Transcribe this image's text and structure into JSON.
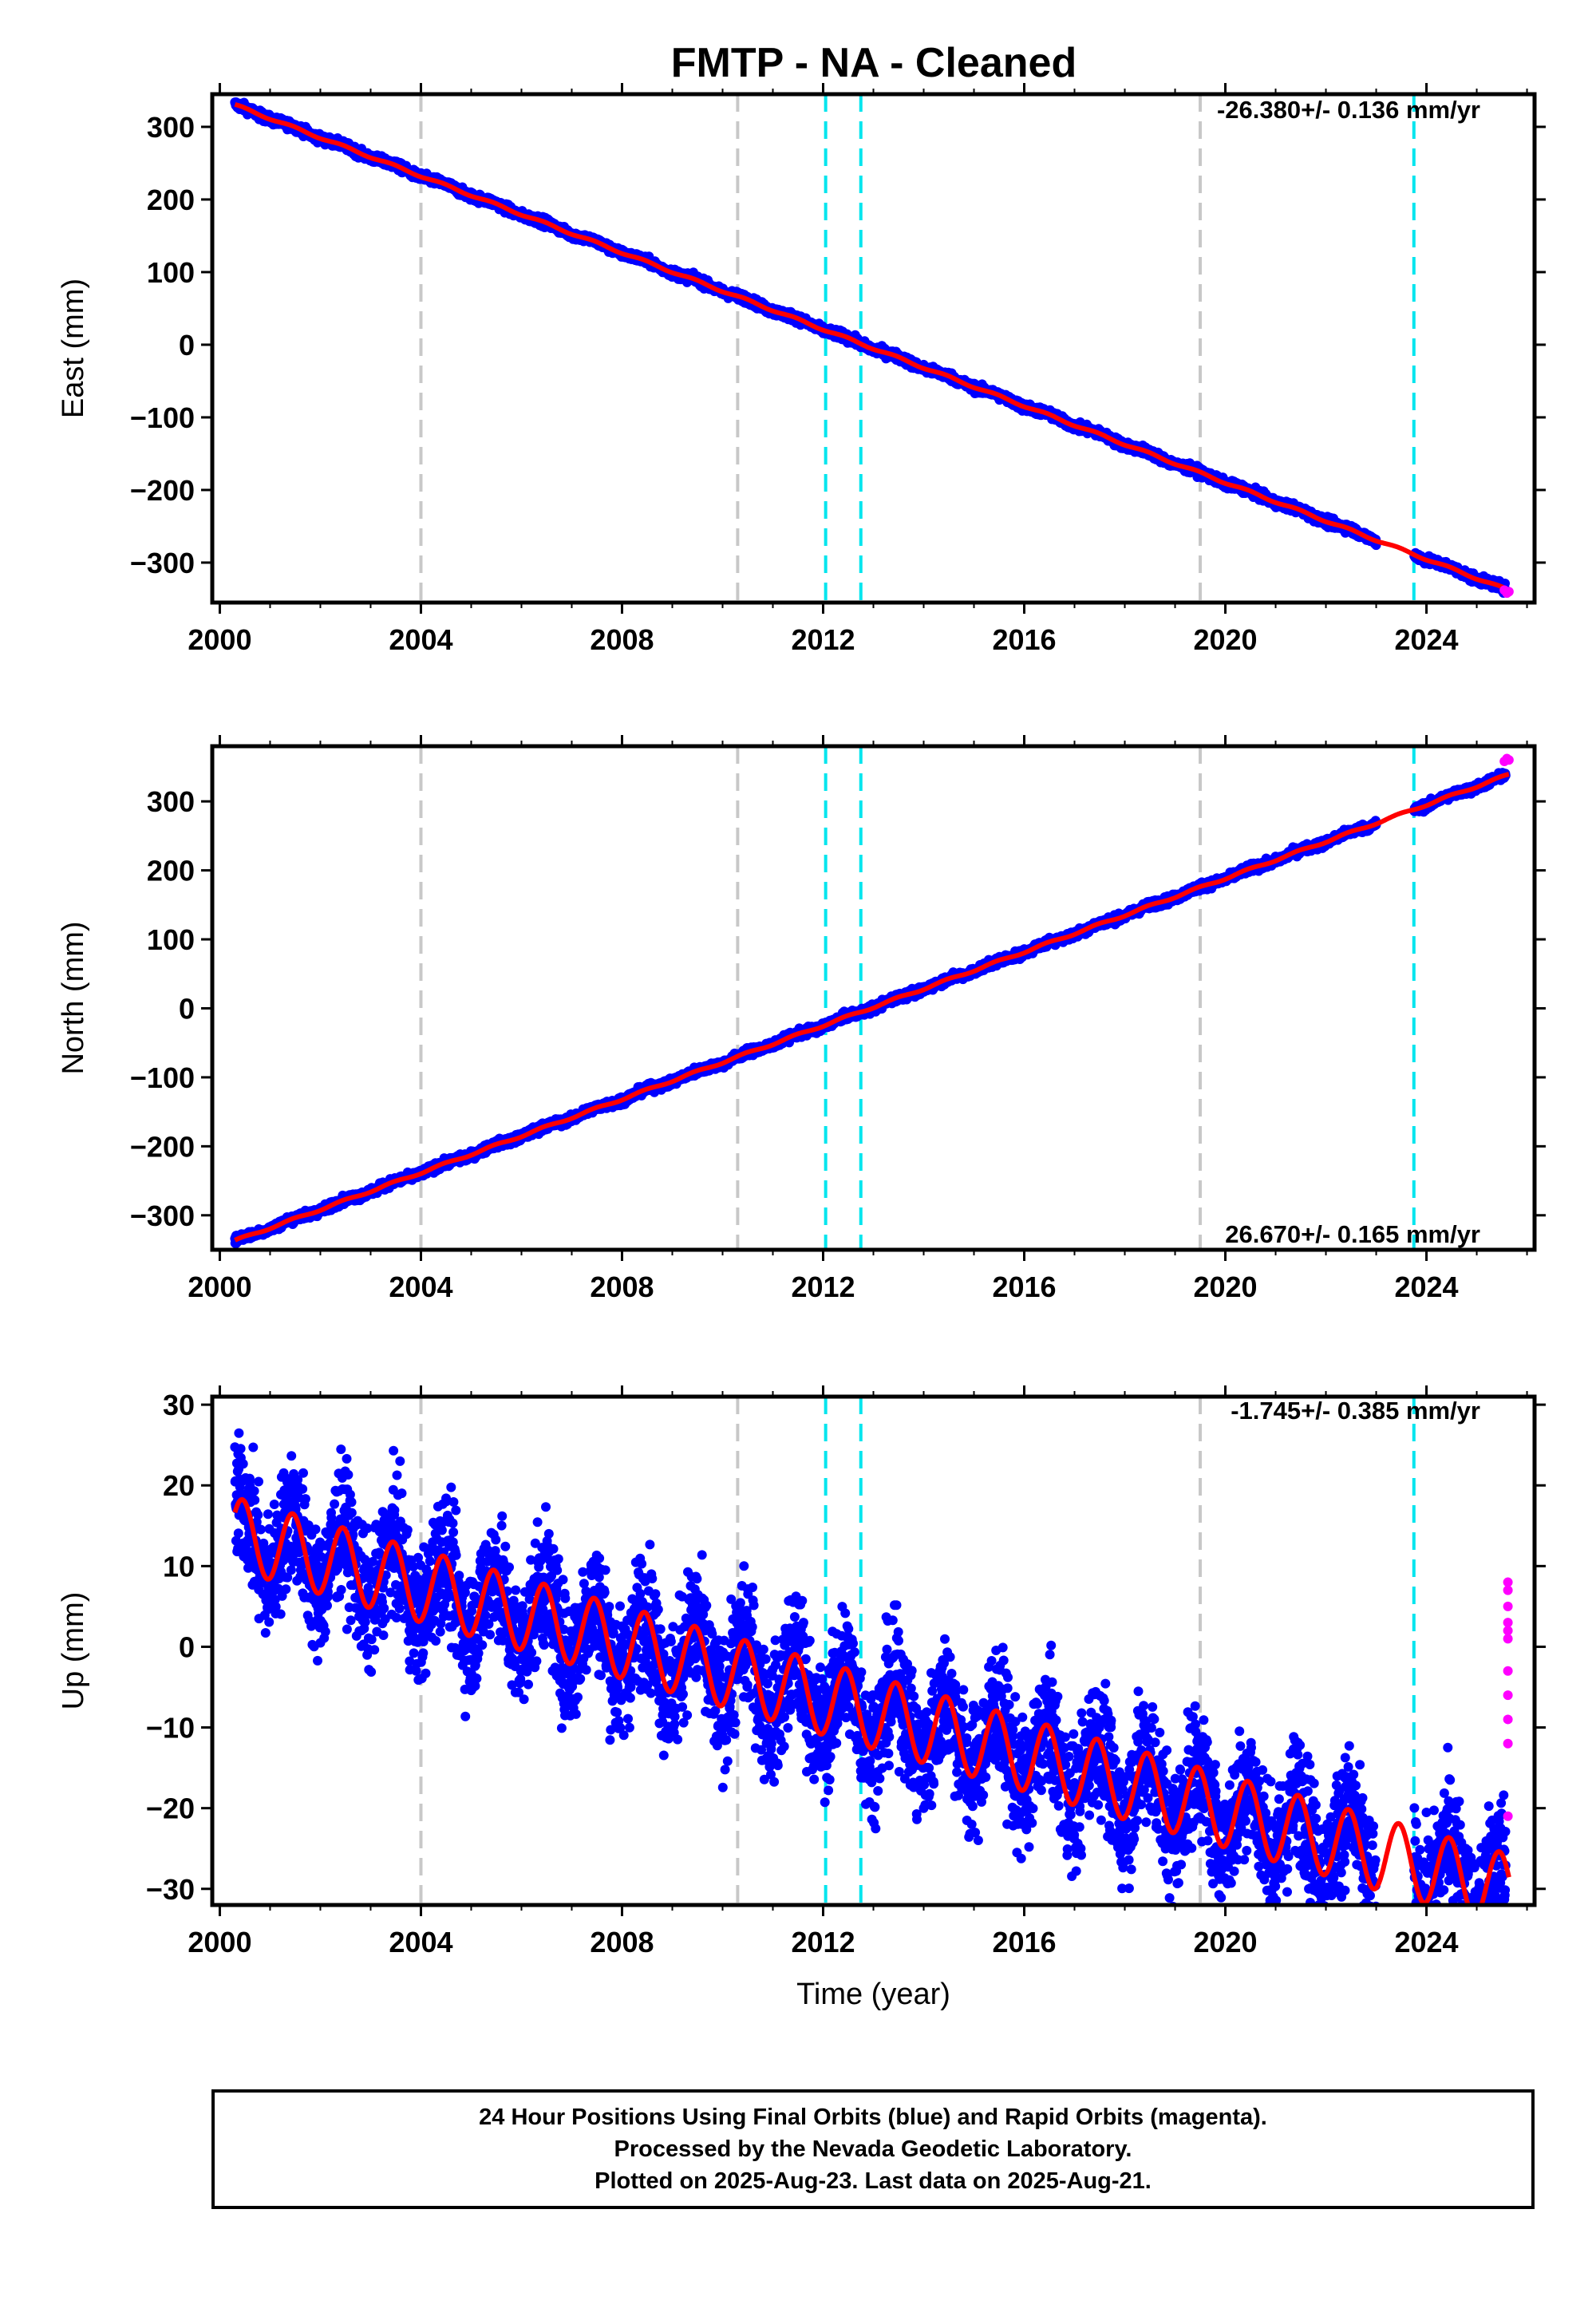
{
  "title": "FMTP  - NA - Cleaned",
  "caption": [
    "24 Hour Positions Using Final Orbits (blue) and Rapid Orbits (magenta).",
    "Processed by the Nevada Geodetic Laboratory.",
    "Plotted on 2025-Aug-23. Last data on 2025-Aug-21."
  ],
  "colors": {
    "final_orbits": "#0000ff",
    "rapid_orbits": "#ff00ff",
    "model_fit": "#ff0000",
    "equipment_change": "#c8c8c8",
    "earthquake_offset": "#00e5ee"
  },
  "chart_data": [
    {
      "type": "scatter",
      "panel": "east",
      "ylabel": "East (mm)",
      "xlabel": "",
      "rate_label": "-26.380+/- 0.136 mm/yr",
      "xlim": [
        1999.85,
        2026.15
      ],
      "ylim": [
        -355,
        345
      ],
      "xticks": [
        2000,
        2004,
        2008,
        2012,
        2016,
        2020,
        2024
      ],
      "yticks": [
        -300,
        -200,
        -100,
        0,
        100,
        200,
        300
      ],
      "model": {
        "start_year": 2000.3,
        "end_year": 2025.64,
        "value_at_start": 330,
        "rate_mm_yr": -26.38,
        "seasonal_amp": 1.5,
        "noise": 3
      },
      "gap": [
        2023.0,
        2023.75
      ],
      "rapid_points": [
        [
          2025.55,
          -338
        ],
        [
          2025.6,
          -342
        ],
        [
          2025.64,
          -340
        ]
      ],
      "gray_lines": [
        2004.0,
        2010.3,
        2019.5
      ],
      "cyan_lines": [
        2012.05,
        2012.75,
        2023.75
      ]
    },
    {
      "type": "scatter",
      "panel": "north",
      "ylabel": "North (mm)",
      "xlabel": "",
      "rate_label": "26.670+/- 0.165 mm/yr",
      "xlim": [
        1999.85,
        2026.15
      ],
      "ylim": [
        -350,
        380
      ],
      "xticks": [
        2000,
        2004,
        2008,
        2012,
        2016,
        2020,
        2024
      ],
      "yticks": [
        -300,
        -200,
        -100,
        0,
        100,
        200,
        300
      ],
      "model": {
        "start_year": 2000.3,
        "end_year": 2025.64,
        "value_at_start": -337,
        "rate_mm_yr": 26.67,
        "seasonal_amp": 1.5,
        "noise": 3
      },
      "gap": [
        2023.0,
        2023.75
      ],
      "rapid_points": [
        [
          2025.55,
          358
        ],
        [
          2025.6,
          362
        ],
        [
          2025.64,
          360
        ]
      ],
      "gray_lines": [
        2004.0,
        2010.3,
        2019.5
      ],
      "cyan_lines": [
        2012.05,
        2012.75,
        2023.75
      ]
    },
    {
      "type": "scatter",
      "panel": "up",
      "ylabel": "Up (mm)",
      "xlabel": "Time (year)",
      "rate_label": "-1.745+/- 0.385 mm/yr",
      "xlim": [
        1999.85,
        2026.15
      ],
      "ylim": [
        -32,
        31
      ],
      "xticks": [
        2000,
        2004,
        2008,
        2012,
        2016,
        2020,
        2024
      ],
      "yticks": [
        -30,
        -20,
        -10,
        0,
        10,
        20,
        30
      ],
      "model": {
        "start_year": 2000.3,
        "end_year": 2025.64,
        "value_at_start": 14,
        "rate_mm_yr": -1.745,
        "seasonal_amp": 4.5,
        "noise": 4
      },
      "gap": [
        2023.0,
        2023.75
      ],
      "rapid_points": [
        [
          2025.62,
          8
        ],
        [
          2025.62,
          7
        ],
        [
          2025.62,
          5
        ],
        [
          2025.62,
          3
        ],
        [
          2025.62,
          2
        ],
        [
          2025.62,
          1
        ],
        [
          2025.62,
          -3
        ],
        [
          2025.62,
          -6
        ],
        [
          2025.62,
          -9
        ],
        [
          2025.62,
          -12
        ],
        [
          2025.62,
          -21
        ]
      ],
      "gray_lines": [
        2004.0,
        2010.3,
        2019.5
      ],
      "cyan_lines": [
        2012.05,
        2012.75,
        2023.75
      ]
    }
  ]
}
